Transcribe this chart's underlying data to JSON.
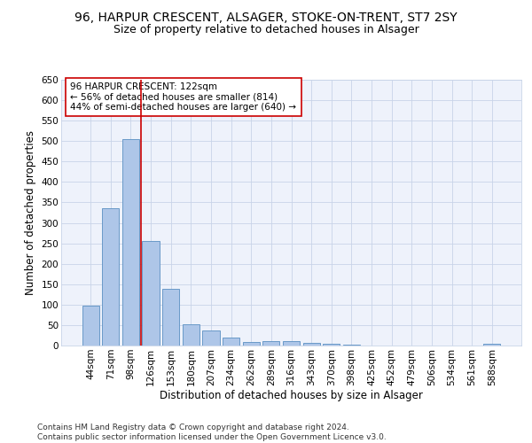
{
  "title1": "96, HARPUR CRESCENT, ALSAGER, STOKE-ON-TRENT, ST7 2SY",
  "title2": "Size of property relative to detached houses in Alsager",
  "xlabel": "Distribution of detached houses by size in Alsager",
  "ylabel": "Number of detached properties",
  "categories": [
    "44sqm",
    "71sqm",
    "98sqm",
    "126sqm",
    "153sqm",
    "180sqm",
    "207sqm",
    "234sqm",
    "262sqm",
    "289sqm",
    "316sqm",
    "343sqm",
    "370sqm",
    "398sqm",
    "425sqm",
    "452sqm",
    "479sqm",
    "506sqm",
    "534sqm",
    "561sqm",
    "588sqm"
  ],
  "values": [
    97,
    335,
    505,
    255,
    138,
    53,
    37,
    20,
    9,
    10,
    10,
    6,
    5,
    2,
    1,
    1,
    1,
    1,
    1,
    1,
    5
  ],
  "bar_color": "#aec6e8",
  "bar_edge_color": "#5a8fc2",
  "vline_x": 2.5,
  "vline_color": "#cc0000",
  "annotation_text": "96 HARPUR CRESCENT: 122sqm\n← 56% of detached houses are smaller (814)\n44% of semi-detached houses are larger (640) →",
  "annotation_box_color": "#ffffff",
  "annotation_box_edge": "#cc0000",
  "ylim": [
    0,
    650
  ],
  "yticks": [
    0,
    50,
    100,
    150,
    200,
    250,
    300,
    350,
    400,
    450,
    500,
    550,
    600,
    650
  ],
  "grid_color": "#c8d4e8",
  "bg_color": "#eef2fb",
  "footer": "Contains HM Land Registry data © Crown copyright and database right 2024.\nContains public sector information licensed under the Open Government Licence v3.0.",
  "title1_fontsize": 10,
  "title2_fontsize": 9,
  "xlabel_fontsize": 8.5,
  "ylabel_fontsize": 8.5,
  "tick_fontsize": 7.5,
  "annotation_fontsize": 7.5,
  "footer_fontsize": 6.5
}
